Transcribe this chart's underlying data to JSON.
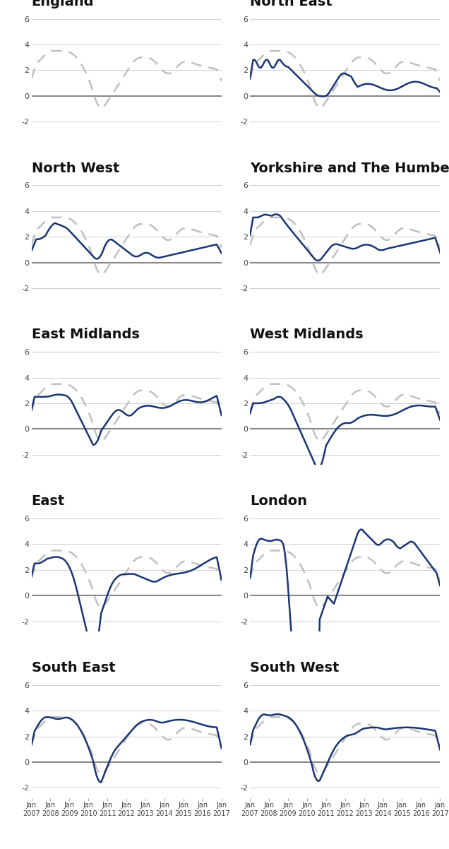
{
  "regions": [
    "England",
    "North East",
    "North West",
    "Yorkshire and The Humber",
    "East Midlands",
    "West Midlands",
    "East",
    "London",
    "South East",
    "South West"
  ],
  "ylim": [
    -2.8,
    6.8
  ],
  "yticks": [
    -2,
    0,
    2,
    4,
    6
  ],
  "background_color": "#ffffff",
  "line_color": "#1a3575",
  "england_color": "#c0c0c0",
  "zero_line_color": "#888888",
  "grid_color": "#d0d0d0",
  "title_fontsize": 14,
  "tick_fontsize": 8,
  "xlabel_years": [
    "2007",
    "2008",
    "2009",
    "2010",
    "2011",
    "2012",
    "2013",
    "2014",
    "2015",
    "2016",
    "2017"
  ],
  "n_months": 121
}
